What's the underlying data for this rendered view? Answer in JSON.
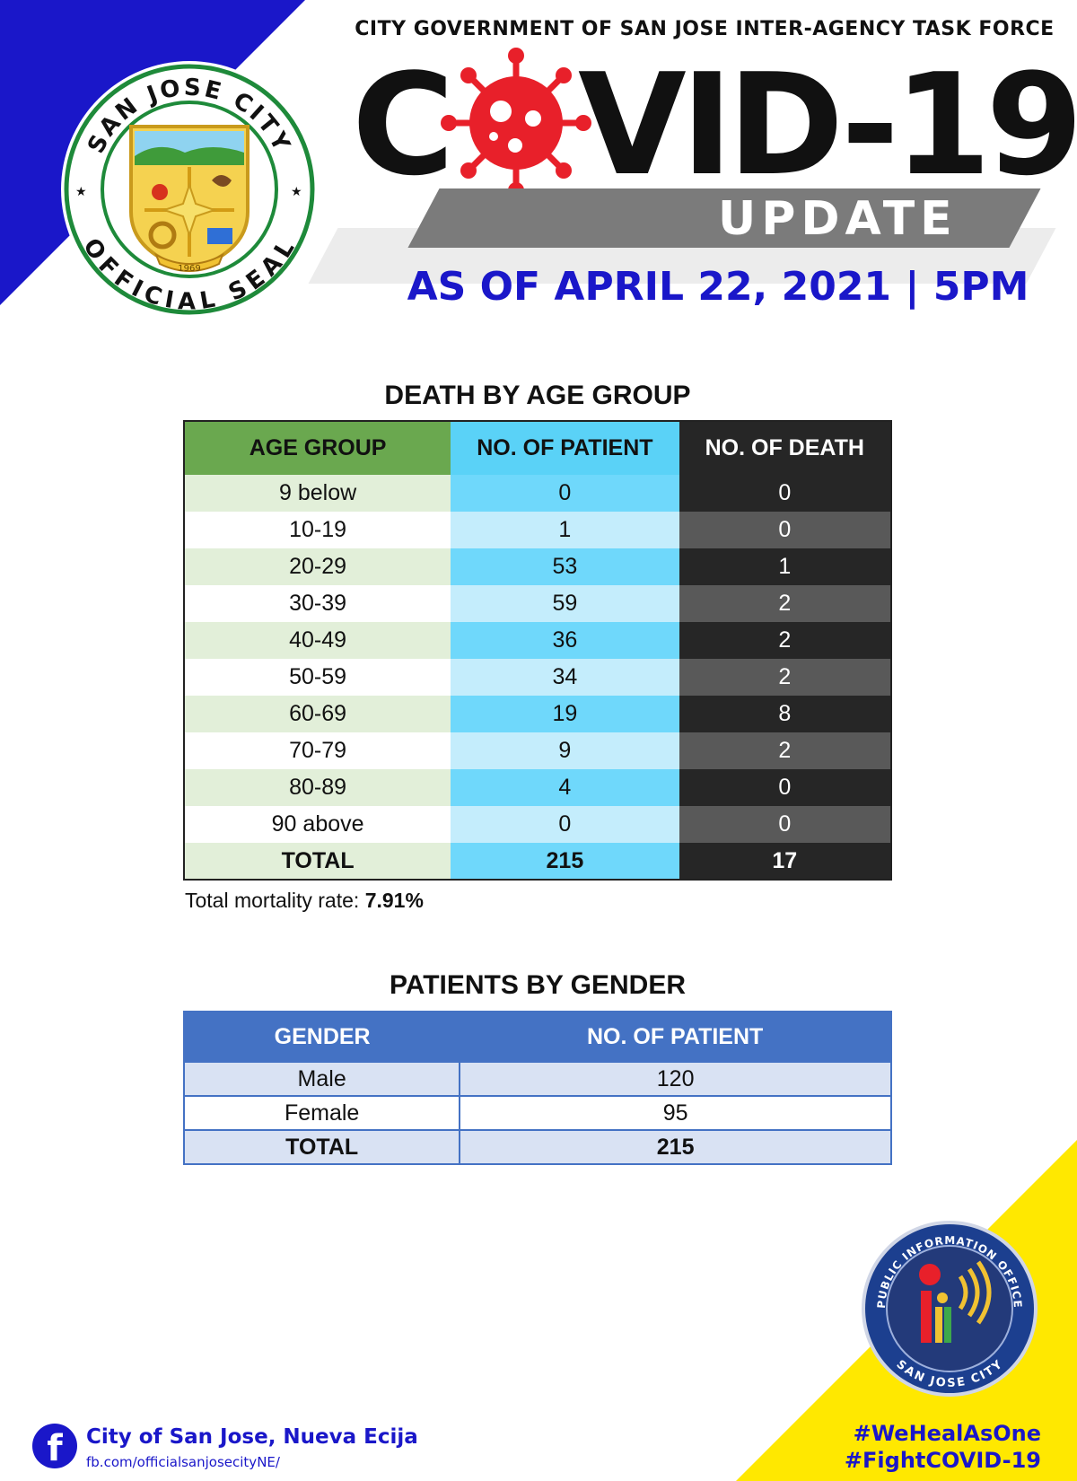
{
  "header": {
    "agency": "CITY GOVERNMENT OF SAN JOSE INTER-AGENCY TASK FORCE",
    "title_part1": "C",
    "title_part2": "VID-19",
    "update_label": "UPDATE",
    "as_of": "AS OF APRIL 22, 2021 | 5PM"
  },
  "seal": {
    "top_text": "SAN JOSE CITY",
    "bottom_text": "OFFICIAL SEAL",
    "year": "1969"
  },
  "age_table": {
    "title": "DEATH BY AGE GROUP",
    "headers": [
      "AGE GROUP",
      "NO. OF PATIENT",
      "NO. OF DEATH"
    ],
    "rows": [
      {
        "group": "9 below",
        "patients": "0",
        "deaths": "0"
      },
      {
        "group": "10-19",
        "patients": "1",
        "deaths": "0"
      },
      {
        "group": "20-29",
        "patients": "53",
        "deaths": "1"
      },
      {
        "group": "30-39",
        "patients": "59",
        "deaths": "2"
      },
      {
        "group": "40-49",
        "patients": "36",
        "deaths": "2"
      },
      {
        "group": "50-59",
        "patients": "34",
        "deaths": "2"
      },
      {
        "group": "60-69",
        "patients": "19",
        "deaths": "8"
      },
      {
        "group": "70-79",
        "patients": "9",
        "deaths": "2"
      },
      {
        "group": "80-89",
        "patients": "4",
        "deaths": "0"
      },
      {
        "group": "90 above",
        "patients": "0",
        "deaths": "0"
      }
    ],
    "total": {
      "label": "TOTAL",
      "patients": "215",
      "deaths": "17"
    },
    "mortality_label": "Total mortality rate: ",
    "mortality_value": "7.91%"
  },
  "gender_table": {
    "title": "PATIENTS BY GENDER",
    "headers": [
      "GENDER",
      "NO. OF PATIENT"
    ],
    "rows": [
      {
        "gender": "Male",
        "patients": "120"
      },
      {
        "gender": "Female",
        "patients": "95"
      }
    ],
    "total": {
      "label": "TOTAL",
      "patients": "215"
    }
  },
  "footer": {
    "fb_name": "City of San Jose, Nueva Ecija",
    "fb_url": "fb.com/officialsanjosecityNE/",
    "hashtag1": "#WeHealAsOne",
    "hashtag2": "#FightCOVID-19"
  },
  "pio_logo": {
    "top_text": "PUBLIC INFORMATION OFFICE",
    "bottom_text": "SAN JOSE CITY"
  },
  "colors": {
    "brand_blue": "#1a17c9",
    "accent_yellow": "#ffe800",
    "virus_red": "#e8202a"
  }
}
